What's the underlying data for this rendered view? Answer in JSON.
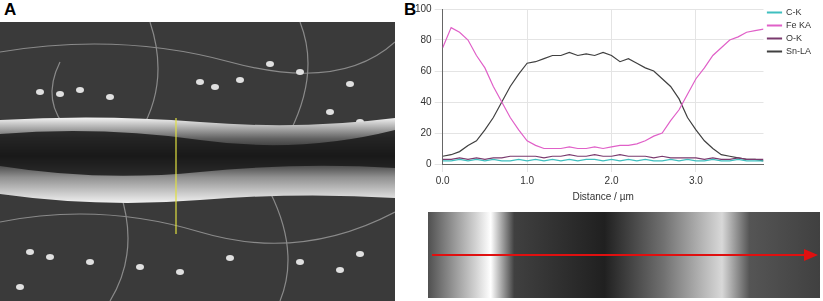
{
  "panel_labels": [
    "A",
    "B"
  ],
  "chart_data": {
    "type": "line",
    "x_label": "Distance / µm",
    "x": [
      0.0,
      0.1,
      0.2,
      0.3,
      0.4,
      0.5,
      0.6,
      0.7,
      0.8,
      0.9,
      1.0,
      1.1,
      1.2,
      1.3,
      1.4,
      1.5,
      1.6,
      1.7,
      1.8,
      1.9,
      2.0,
      2.1,
      2.2,
      2.3,
      2.4,
      2.5,
      2.6,
      2.7,
      2.8,
      2.9,
      3.0,
      3.1,
      3.2,
      3.3,
      3.4,
      3.5,
      3.6,
      3.7,
      3.8
    ],
    "series": [
      {
        "name": "C-K",
        "color": "#3fbfbf",
        "values": [
          2,
          2,
          3,
          2,
          3,
          2,
          3,
          2,
          2,
          3,
          2,
          3,
          2,
          3,
          2,
          3,
          2,
          3,
          3,
          2,
          3,
          2,
          3,
          2,
          3,
          2,
          2,
          3,
          2,
          3,
          2,
          2,
          3,
          2,
          2,
          3,
          2,
          2,
          2
        ]
      },
      {
        "name": "Fe KA",
        "color": "#e060c8",
        "values": [
          75,
          88,
          85,
          80,
          70,
          62,
          50,
          40,
          30,
          22,
          15,
          12,
          10,
          10,
          10,
          11,
          10,
          10,
          11,
          10,
          11,
          12,
          12,
          13,
          15,
          18,
          20,
          28,
          35,
          45,
          55,
          62,
          70,
          75,
          80,
          82,
          85,
          86,
          87
        ]
      },
      {
        "name": "O-K",
        "color": "#7a3a6e",
        "values": [
          3,
          3,
          4,
          3,
          4,
          3,
          4,
          4,
          5,
          5,
          5,
          5,
          4,
          5,
          5,
          6,
          5,
          5,
          6,
          5,
          5,
          6,
          5,
          5,
          5,
          4,
          5,
          4,
          4,
          4,
          4,
          3,
          4,
          3,
          3,
          4,
          3,
          3,
          3
        ]
      },
      {
        "name": "Sn-LA",
        "color": "#404040",
        "values": [
          5,
          6,
          8,
          12,
          15,
          22,
          30,
          40,
          50,
          58,
          65,
          66,
          68,
          70,
          70,
          72,
          70,
          71,
          70,
          72,
          70,
          66,
          68,
          65,
          62,
          60,
          55,
          50,
          42,
          30,
          22,
          15,
          10,
          6,
          5,
          4,
          3,
          3,
          2
        ]
      }
    ],
    "xlim": [
      0,
      3.8
    ],
    "xticks": [
      {
        "value": 0,
        "label": "0.0"
      },
      {
        "value": 1,
        "label": "1.0"
      },
      {
        "value": 2,
        "label": "2.0"
      },
      {
        "value": 3,
        "label": "3.0"
      }
    ],
    "ylim": [
      0,
      100
    ],
    "yticks": [
      0,
      20,
      40,
      60,
      80,
      100
    ],
    "grid": true,
    "legend": "upper right"
  }
}
